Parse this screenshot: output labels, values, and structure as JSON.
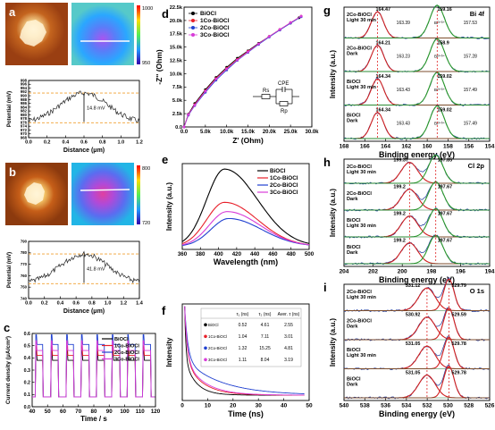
{
  "panels": {
    "a": {
      "letter": "a",
      "scale_top": "1000",
      "scale_bottom": "950",
      "ylabel": "Potential (mV)",
      "xlabel": "Distance (μm)",
      "yticks": [
        "968",
        "970",
        "972",
        "974",
        "976",
        "978",
        "980",
        "982",
        "984",
        "986",
        "988",
        "990",
        "992",
        "994",
        "996",
        "998"
      ],
      "xticks": [
        "0.0",
        "0.2",
        "0.4",
        "0.6",
        "0.8",
        "1.0",
        "1.2"
      ],
      "annotation": "14.8 mV"
    },
    "b": {
      "letter": "b",
      "scale_top": "800",
      "scale_bottom": "720",
      "ylabel": "Potential (mV)",
      "xlabel": "Distance (μm)",
      "yticks": [
        "740",
        "750",
        "760",
        "770",
        "780",
        "790"
      ],
      "xticks": [
        "0.0",
        "0.2",
        "0.4",
        "0.6",
        "0.8",
        "1.0",
        "1.2",
        "1.4"
      ],
      "annotation": "41.8 mV"
    },
    "c": {
      "letter": "c",
      "ylabel": "Current density (μA/cm²)",
      "xlabel": "Time / s",
      "yticks": [
        "0.0",
        "0.1",
        "0.2",
        "0.3",
        "0.4",
        "0.5",
        "0.6"
      ],
      "xticks": [
        "40",
        "50",
        "60",
        "70",
        "80",
        "90",
        "100",
        "110",
        "120"
      ]
    },
    "d": {
      "letter": "d",
      "ylabel": "-Z'' (Ohm)",
      "xlabel": "Z' (Ohm)",
      "yticks": [
        "0.0",
        "2.5k",
        "5.0k",
        "7.5k",
        "10.0k",
        "12.5k",
        "15.0k",
        "17.5k",
        "20.0k",
        "22.5k"
      ],
      "xticks": [
        "0.0",
        "5.0k",
        "10.0k",
        "15.0k",
        "20.0k",
        "25.0k",
        "30.0k"
      ],
      "circuit": {
        "rs": "Rs",
        "cpe": "CPE",
        "rp": "Rp"
      }
    },
    "e": {
      "letter": "e",
      "ylabel": "Intensity (a.u.)",
      "xlabel": "Wavelength (nm)",
      "xticks": [
        "360",
        "380",
        "400",
        "420",
        "440",
        "460",
        "480",
        "500"
      ]
    },
    "f": {
      "letter": "f",
      "ylabel": "Intensity",
      "xlabel": "Time (ns)",
      "xticks": [
        "0",
        "10",
        "20",
        "30",
        "40",
        "50"
      ],
      "table": {
        "headers": [
          "",
          "τ₁ (ns)",
          "τ₂ (ns)",
          "Aver. τ (ns)"
        ],
        "rows": [
          {
            "name": "BiOCl",
            "t1": "0.52",
            "t2": "4.61",
            "avg": "2.55",
            "color": "#000000"
          },
          {
            "name": "1Co-BiOCl",
            "t1": "1.04",
            "t2": "7.11",
            "avg": "3.01",
            "color": "#e8202a"
          },
          {
            "name": "2Co-BiOCl",
            "t1": "1.32",
            "t2": "15.25",
            "avg": "4.81",
            "color": "#2040d0"
          },
          {
            "name": "3Co-BiOCl",
            "t1": "1.11",
            "t2": "8.04",
            "avg": "3.19",
            "color": "#d83cd8"
          }
        ]
      }
    },
    "g": {
      "letter": "g",
      "ylabel": "Intensity (a.u.)",
      "xlabel": "Binding energy (eV)",
      "title": "Bi 4f",
      "xticks": [
        "168",
        "166",
        "164",
        "162",
        "160",
        "158",
        "156",
        "154"
      ],
      "rows": [
        {
          "label1": "2Co-BiOCl",
          "label2": "Light 30 min",
          "p1": "164.47",
          "p2": "159.16",
          "s1": "163.39",
          "s2": "157.53"
        },
        {
          "label1": "2Co-BiOCl",
          "label2": "Dark",
          "p1": "164.21",
          "p2": "158.9",
          "s1": "163.23",
          "s2": "157.28"
        },
        {
          "label1": "BiOCl",
          "label2": "Light 30 min",
          "p1": "164.34",
          "p2": "159.02",
          "s1": "163.43",
          "s2": "157.49"
        },
        {
          "label1": "BiOCl",
          "label2": "Dark",
          "p1": "164.34",
          "p2": "159.02",
          "s1": "163.43",
          "s2": "157.49"
        }
      ],
      "sat1": "Bi³⁺ᵟ⁺",
      "sat2": "Bi³⁺ᵟ⁺"
    },
    "h": {
      "letter": "h",
      "ylabel": "Intensity (a.u.)",
      "xlabel": "Binding energy (eV)",
      "title": "Cl 2p",
      "xticks": [
        "204",
        "202",
        "200",
        "198",
        "196",
        "194"
      ],
      "rows": [
        {
          "label1": "2Co-BiOCl",
          "label2": "Light 30 min",
          "p1": "199.37",
          "p2": "197.85"
        },
        {
          "label1": "2Co-BiOCl",
          "label2": "Dark",
          "p1": "199.2",
          "p2": "197.67"
        },
        {
          "label1": "BiOCl",
          "label2": "Light 30 min",
          "p1": "199.2",
          "p2": "197.67"
        },
        {
          "label1": "BiOCl",
          "label2": "Dark",
          "p1": "199.2",
          "p2": "197.67"
        }
      ]
    },
    "i": {
      "letter": "i",
      "ylabel": "Intensity (a.u.)",
      "xlabel": "Binding energy (eV)",
      "title": "O 1s",
      "xticks": [
        "540",
        "538",
        "536",
        "534",
        "532",
        "530",
        "528",
        "526"
      ],
      "rows": [
        {
          "label1": "2Co-BiOCl",
          "label2": "Light 30 min",
          "p1": "531.12",
          "p2": "529.79"
        },
        {
          "label1": "2Co-BiOCl",
          "label2": "Dark",
          "p1": "530.92",
          "p2": "529.59"
        },
        {
          "label1": "BiOCl",
          "label2": "Light 30 min",
          "p1": "531.05",
          "p2": "529.78"
        },
        {
          "label1": "BiOCl",
          "label2": "Dark",
          "p1": "531.05",
          "p2": "529.78"
        }
      ]
    }
  },
  "legend_items": [
    {
      "name": "BiOCl",
      "color": "#000000"
    },
    {
      "name": "1Co-BiOCl",
      "color": "#e8202a"
    },
    {
      "name": "2Co-BiOCl",
      "color": "#2040d0"
    },
    {
      "name": "3Co-BiOCl",
      "color": "#d83cd8"
    }
  ],
  "chart_data": [
    {
      "type": "line",
      "panel": "c",
      "xlabel": "Time / s",
      "ylabel": "Current density (μA/cm²)",
      "xlim": [
        40,
        120
      ],
      "ylim": [
        0.0,
        0.6
      ],
      "on_intervals": [
        [
          42,
          47
        ],
        [
          52,
          57
        ],
        [
          62,
          67
        ],
        [
          72,
          77
        ],
        [
          82,
          87
        ],
        [
          92,
          97
        ],
        [
          102,
          107
        ],
        [
          112,
          117
        ]
      ],
      "series": [
        {
          "name": "BiOCl",
          "dark": 0.08,
          "light": 0.4
        },
        {
          "name": "1Co-BiOCl",
          "dark": 0.08,
          "light": 0.44
        },
        {
          "name": "2Co-BiOCl",
          "dark": 0.08,
          "light": 0.53
        },
        {
          "name": "3Co-BiOCl",
          "dark": 0.08,
          "light": 0.48
        }
      ]
    },
    {
      "type": "scatter",
      "panel": "d",
      "xlabel": "Z' (Ohm)",
      "ylabel": "-Z'' (Ohm)",
      "xlim": [
        0,
        30000
      ],
      "ylim": [
        0,
        22500
      ],
      "series": [
        {
          "name": "BiOCl",
          "x": [
            0,
            1000,
            2500,
            5000,
            7500,
            10000,
            12500,
            15000,
            17500,
            20000,
            22500,
            25000,
            27000
          ],
          "y": [
            0,
            2400,
            4400,
            7000,
            9300,
            11200,
            12900,
            14300,
            15700,
            17000,
            18300,
            19500,
            20500
          ]
        },
        {
          "name": "1Co-BiOCl",
          "x": [
            0,
            1000,
            2500,
            5000,
            7500,
            10000,
            12500,
            15000,
            17500,
            20000,
            22500,
            25000,
            27500
          ],
          "y": [
            0,
            2300,
            4200,
            6800,
            9100,
            11000,
            12700,
            14200,
            15600,
            17000,
            18300,
            19600,
            20800
          ]
        },
        {
          "name": "2Co-BiOCl",
          "x": [
            0,
            1000,
            2500,
            5000,
            7500,
            10000,
            12500,
            15000,
            17500,
            20000,
            22500,
            25000,
            27500
          ],
          "y": [
            0,
            2200,
            4000,
            6500,
            8800,
            10700,
            12500,
            14000,
            15500,
            16900,
            18200,
            19500,
            20700
          ]
        },
        {
          "name": "3Co-BiOCl",
          "x": [
            0,
            1000,
            2500,
            5000,
            7500,
            10000,
            12500,
            15000,
            17500,
            20000,
            22500,
            25000,
            27500
          ],
          "y": [
            0,
            2300,
            4100,
            6700,
            9000,
            10900,
            12600,
            14100,
            15600,
            17000,
            18300,
            19600,
            20800
          ]
        }
      ]
    },
    {
      "type": "line",
      "panel": "e",
      "xlabel": "Wavelength (nm)",
      "ylabel": "Intensity (a.u.)",
      "xlim": [
        350,
        500
      ],
      "series": [
        {
          "name": "BiOCl",
          "peak": 1.0,
          "center": 400
        },
        {
          "name": "1Co-BiOCl",
          "peak": 0.57,
          "center": 400
        },
        {
          "name": "2Co-BiOCl",
          "peak": 0.36,
          "center": 405
        },
        {
          "name": "3Co-BiOCl",
          "peak": 0.45,
          "center": 403
        }
      ]
    },
    {
      "type": "line",
      "panel": "f",
      "xlabel": "Time (ns)",
      "ylabel": "Intensity",
      "xlim": [
        -1,
        52
      ],
      "series": [
        {
          "name": "BiOCl",
          "tau1": 0.52,
          "tau2": 4.61
        },
        {
          "name": "1Co-BiOCl",
          "tau1": 1.04,
          "tau2": 7.11
        },
        {
          "name": "2Co-BiOCl",
          "tau1": 1.32,
          "tau2": 15.25
        },
        {
          "name": "3Co-BiOCl",
          "tau1": 1.11,
          "tau2": 8.04
        }
      ]
    }
  ]
}
